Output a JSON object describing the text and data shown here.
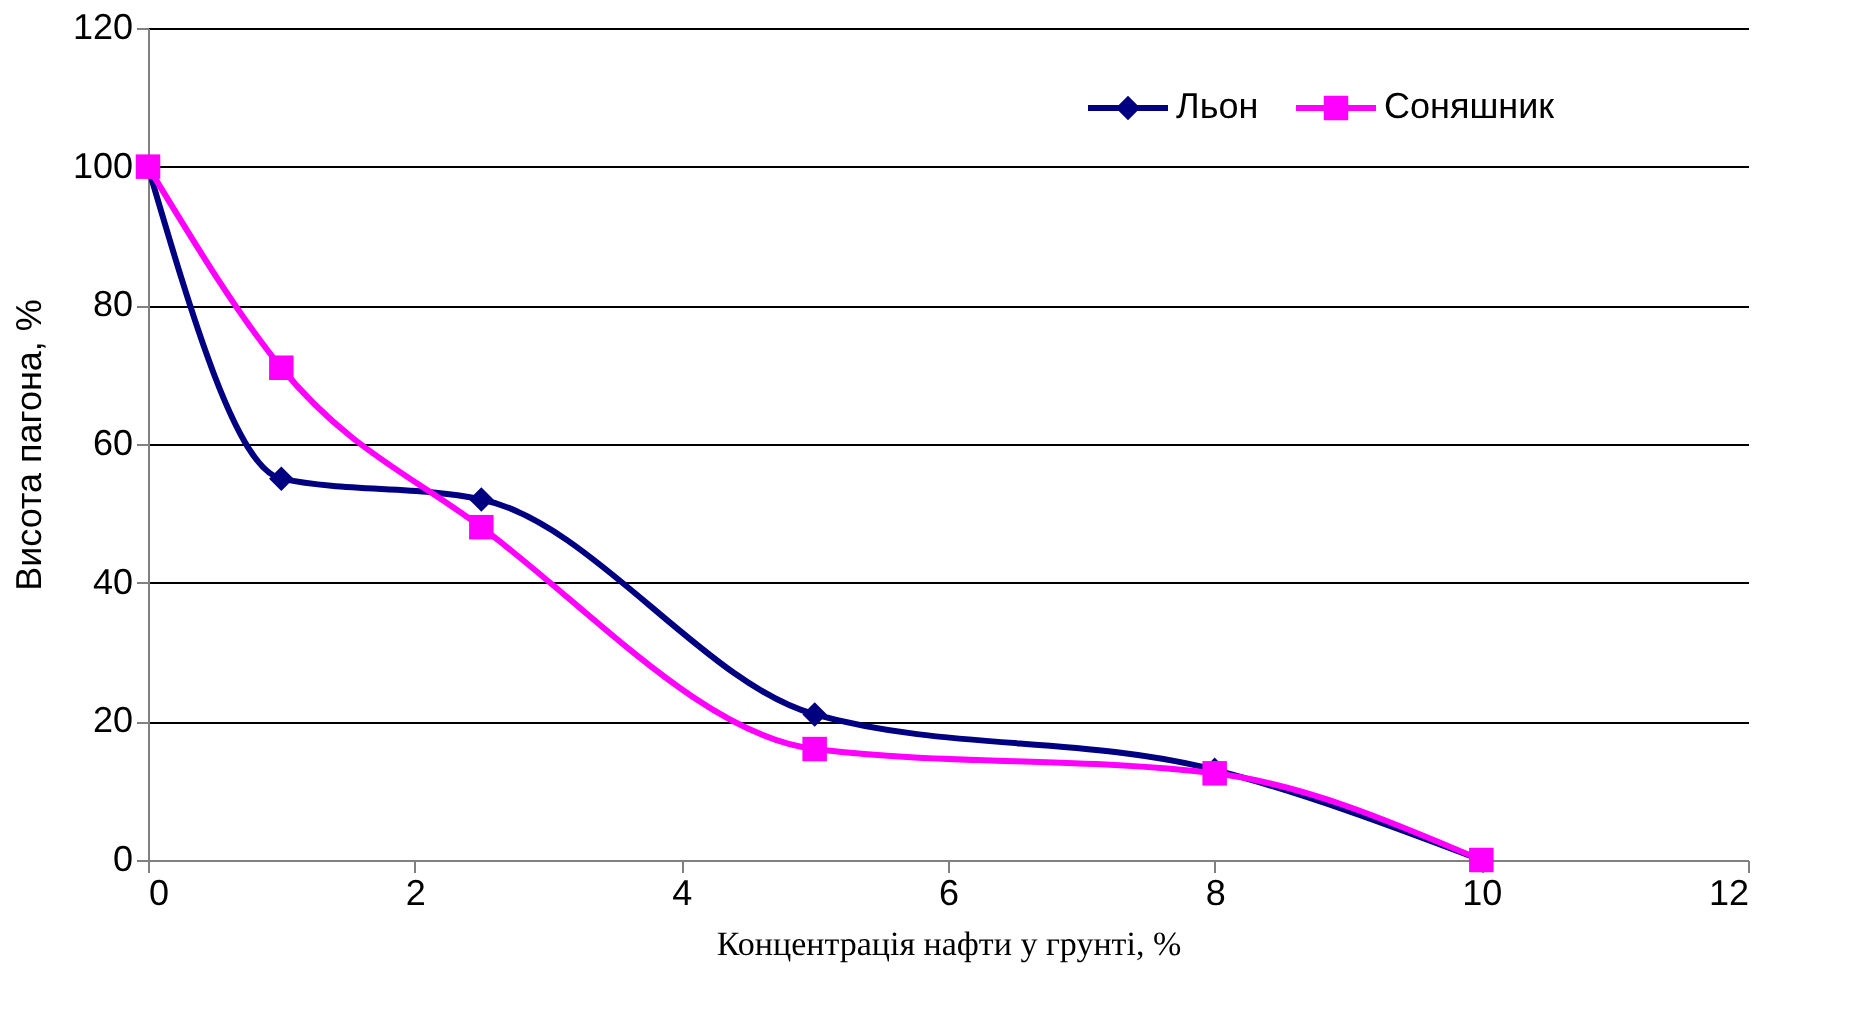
{
  "chart_data": {
    "type": "line",
    "xlabel": "Концентрація нафти у грунті, %",
    "ylabel": "Висота    пагона,    %",
    "x": [
      0,
      1,
      2.5,
      5,
      8,
      10
    ],
    "series": [
      {
        "name": "Льон",
        "color": "#000080",
        "marker": "diamond",
        "values": [
          100,
          55,
          52,
          21,
          13,
          0
        ]
      },
      {
        "name": "Соняшник",
        "color": "#ff00ff",
        "marker": "square",
        "values": [
          100,
          71,
          48,
          16,
          12.5,
          0
        ]
      }
    ],
    "xlim": [
      0,
      12
    ],
    "xticks": [
      0,
      2,
      4,
      6,
      8,
      10,
      12
    ],
    "ylim": [
      0,
      120
    ],
    "yticks": [
      0,
      20,
      40,
      60,
      80,
      100,
      120
    ],
    "grid": "y",
    "legend": "top right",
    "line_style": "solid"
  }
}
